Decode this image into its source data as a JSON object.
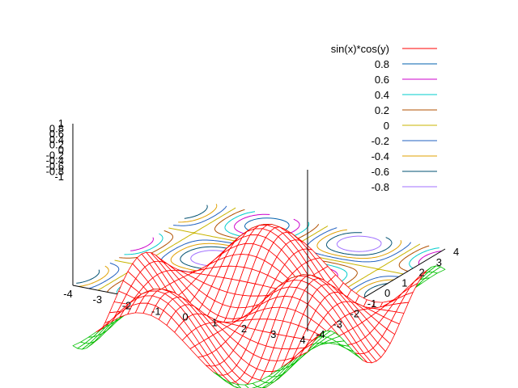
{
  "chart_data": {
    "type": "surface3d",
    "function": "sin(x)*cos(y)",
    "grid": false,
    "legend_position": "top-right",
    "xrange": [
      -4,
      4
    ],
    "yrange": [
      -4,
      4
    ],
    "zrange": [
      -1,
      1
    ],
    "x_ticks": [
      "-4",
      "-3",
      "-2",
      "-1",
      "0",
      "1",
      "2",
      "3",
      "4"
    ],
    "y_ticks": [
      "-4",
      "-3",
      "-2",
      "-1",
      "0",
      "1",
      "2",
      "3",
      "4"
    ],
    "z_ticks": [
      "1",
      "0.8",
      "0.6",
      "0.4",
      "0.2",
      "0",
      "-0.2",
      "-0.4",
      "-0.6",
      "-0.8",
      "-1"
    ],
    "surface": {
      "name": "sin(x)*cos(y)",
      "color": "#ff0000",
      "underside_color": "#00c000"
    },
    "contour_levels": [
      {
        "label": "0.8",
        "value": 0.8,
        "color": "#0060ad"
      },
      {
        "label": "0.6",
        "value": 0.6,
        "color": "#cc00cc"
      },
      {
        "label": "0.4",
        "value": 0.4,
        "color": "#00cccc"
      },
      {
        "label": "0.2",
        "value": 0.2,
        "color": "#b05000"
      },
      {
        "label": "0",
        "value": 0,
        "color": "#c8b400"
      },
      {
        "label": "-0.2",
        "value": -0.2,
        "color": "#2060c0"
      },
      {
        "label": "-0.4",
        "value": -0.4,
        "color": "#e0a000"
      },
      {
        "label": "-0.6",
        "value": -0.6,
        "color": "#005070"
      },
      {
        "label": "-0.8",
        "value": -0.8,
        "color": "#a070ff"
      }
    ]
  }
}
